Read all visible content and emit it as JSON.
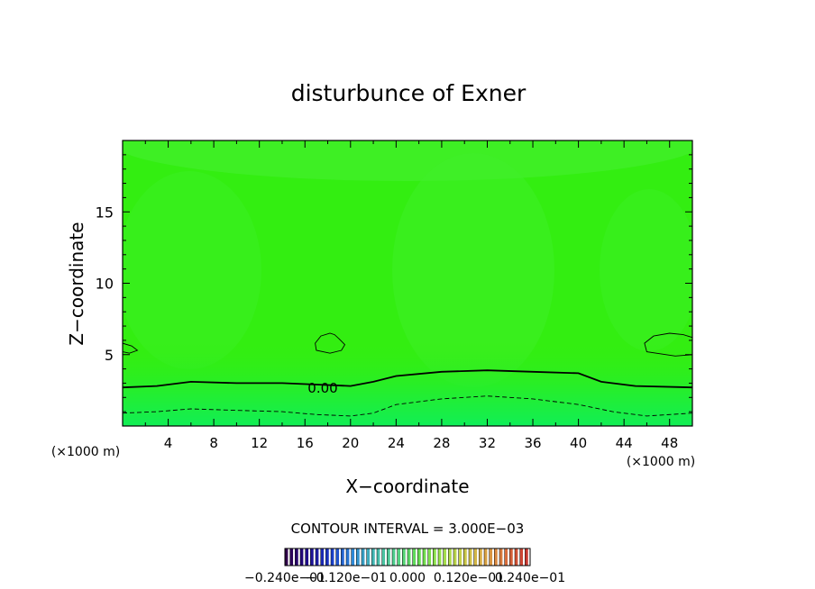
{
  "chart_data": {
    "type": "heatmap",
    "title": "disturbunce of Exner",
    "xlabel": "X−coordinate",
    "ylabel": "Z−coordinate",
    "x_unit_left": "(×1000 m)",
    "x_unit_right": "(×1000 m)",
    "xlim": [
      0,
      50
    ],
    "ylim": [
      0,
      20
    ],
    "x_ticks": [
      4,
      8,
      12,
      16,
      20,
      24,
      28,
      32,
      36,
      40,
      44,
      48
    ],
    "y_ticks": [
      5,
      10,
      15
    ],
    "contour_interval_text": "CONTOUR INTERVAL = 3.000E−03",
    "contour_label": "0.00",
    "contours": [
      {
        "level": 0.0,
        "style": "solid",
        "points": [
          [
            0,
            2.7
          ],
          [
            3,
            2.8
          ],
          [
            6,
            3.1
          ],
          [
            10,
            3.0
          ],
          [
            14,
            3.0
          ],
          [
            17,
            2.9
          ],
          [
            20,
            2.8
          ],
          [
            22,
            3.1
          ],
          [
            24,
            3.5
          ],
          [
            28,
            3.8
          ],
          [
            32,
            3.9
          ],
          [
            36,
            3.8
          ],
          [
            40,
            3.7
          ],
          [
            42,
            3.1
          ],
          [
            45,
            2.8
          ],
          [
            50,
            2.7
          ]
        ]
      },
      {
        "level": -0.003,
        "style": "dashed",
        "points": [
          [
            0,
            0.9
          ],
          [
            3,
            1.0
          ],
          [
            6,
            1.2
          ],
          [
            10,
            1.1
          ],
          [
            14,
            1.0
          ],
          [
            17,
            0.8
          ],
          [
            20,
            0.7
          ],
          [
            22,
            0.9
          ],
          [
            24,
            1.5
          ],
          [
            28,
            1.9
          ],
          [
            32,
            2.1
          ],
          [
            36,
            1.9
          ],
          [
            40,
            1.5
          ],
          [
            43,
            1.0
          ],
          [
            46,
            0.7
          ],
          [
            50,
            0.9
          ]
        ]
      },
      {
        "level": 0.003,
        "style": "solid",
        "closed": true,
        "points": [
          [
            17,
            5.3
          ],
          [
            16.9,
            5.8
          ],
          [
            17.4,
            6.3
          ],
          [
            18.2,
            6.5
          ],
          [
            18.6,
            6.4
          ],
          [
            19,
            6.1
          ],
          [
            19.5,
            5.7
          ],
          [
            19.2,
            5.3
          ],
          [
            18.2,
            5.1
          ]
        ]
      },
      {
        "level": 0.003,
        "style": "solid",
        "closed": true,
        "points": [
          [
            46,
            5.2
          ],
          [
            45.8,
            5.8
          ],
          [
            46.6,
            6.3
          ],
          [
            48,
            6.5
          ],
          [
            49.2,
            6.4
          ],
          [
            50,
            6.2
          ],
          [
            50,
            5.0
          ],
          [
            48.5,
            4.9
          ]
        ]
      },
      {
        "level": 0.003,
        "style": "solid",
        "points": [
          [
            0,
            5.8
          ],
          [
            0.8,
            5.6
          ],
          [
            1.3,
            5.3
          ],
          [
            0.6,
            5.1
          ],
          [
            0,
            5.2
          ]
        ]
      }
    ],
    "colorbar": {
      "labels": [
        "−0.240e−01",
        "−0.120e−01",
        "0.000",
        "0.120e−01",
        "0.240e−01"
      ],
      "colors": [
        "#30004a",
        "#1e0c8c",
        "#1838c8",
        "#2c86d8",
        "#44b8b4",
        "#50d08a",
        "#62dc52",
        "#96e04a",
        "#c8d04a",
        "#d8a844",
        "#d8703c",
        "#c83830"
      ]
    },
    "field_colors": {
      "base": "#33ee11",
      "high": "#47f035",
      "low": "#00ee77"
    }
  }
}
